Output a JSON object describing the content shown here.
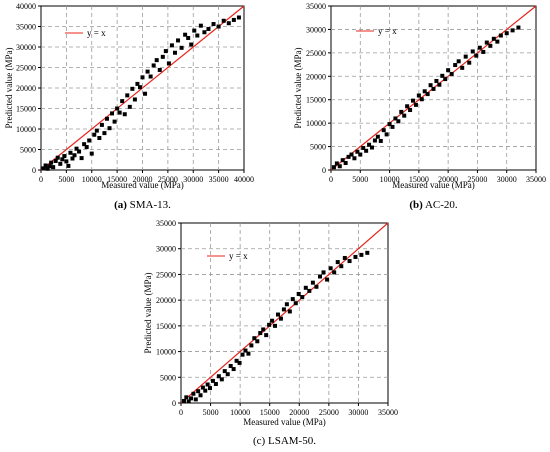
{
  "chart_data": [
    {
      "type": "scatter",
      "caption_letter": "(a)",
      "caption_text": " SMA-13.",
      "xlabel": "Measured value (MPa)",
      "ylabel": "Predicted value (MPa)",
      "xlim": [
        0,
        40000
      ],
      "ylim": [
        0,
        40000
      ],
      "xticks": [
        0,
        5000,
        10000,
        15000,
        20000,
        25000,
        30000,
        35000,
        40000
      ],
      "yticks": [
        0,
        5000,
        10000,
        15000,
        20000,
        25000,
        30000,
        35000,
        40000
      ],
      "xtick_labels": [
        "0",
        "5000",
        "10000",
        "15000",
        "20000",
        "25000",
        "30000",
        "35000",
        "40000"
      ],
      "ytick_labels": [
        "0",
        "5000",
        "10000",
        "15000",
        "20000",
        "25000",
        "30000",
        "35000",
        "40000"
      ],
      "grid": true,
      "legend_position": "top-left",
      "series": [
        {
          "name": "y = x",
          "kind": "line",
          "color": "#e8241c",
          "points": [
            [
              0,
              0
            ],
            [
              40000,
              40000
            ]
          ]
        },
        {
          "kind": "scatter",
          "color": "#000000",
          "points": [
            [
              500,
              400
            ],
            [
              900,
              1100
            ],
            [
              1300,
              300
            ],
            [
              1700,
              900
            ],
            [
              2000,
              1800
            ],
            [
              2400,
              700
            ],
            [
              2900,
              2200
            ],
            [
              3300,
              3000
            ],
            [
              3800,
              1500
            ],
            [
              4200,
              2600
            ],
            [
              4600,
              3400
            ],
            [
              5000,
              2100
            ],
            [
              5400,
              1000
            ],
            [
              5800,
              4200
            ],
            [
              6200,
              2800
            ],
            [
              6600,
              3600
            ],
            [
              7000,
              5200
            ],
            [
              7500,
              4500
            ],
            [
              8000,
              2900
            ],
            [
              8500,
              6300
            ],
            [
              9000,
              5600
            ],
            [
              9500,
              7200
            ],
            [
              10000,
              4000
            ],
            [
              10500,
              8600
            ],
            [
              11000,
              9600
            ],
            [
              11500,
              7800
            ],
            [
              12000,
              11000
            ],
            [
              12500,
              9000
            ],
            [
              13000,
              12500
            ],
            [
              13500,
              10200
            ],
            [
              14000,
              13800
            ],
            [
              14500,
              11800
            ],
            [
              15000,
              15000
            ],
            [
              15500,
              14000
            ],
            [
              16000,
              16800
            ],
            [
              16500,
              13600
            ],
            [
              17000,
              18200
            ],
            [
              17500,
              15400
            ],
            [
              18000,
              19800
            ],
            [
              18500,
              17200
            ],
            [
              19000,
              21000
            ],
            [
              19500,
              20200
            ],
            [
              20000,
              22600
            ],
            [
              20500,
              18600
            ],
            [
              21000,
              24000
            ],
            [
              21600,
              22800
            ],
            [
              22200,
              25500
            ],
            [
              22800,
              26800
            ],
            [
              23400,
              24400
            ],
            [
              24000,
              27600
            ],
            [
              24600,
              29000
            ],
            [
              25200,
              26000
            ],
            [
              25800,
              30400
            ],
            [
              26400,
              28600
            ],
            [
              27000,
              31600
            ],
            [
              27700,
              29800
            ],
            [
              28400,
              33000
            ],
            [
              29000,
              32200
            ],
            [
              29600,
              30600
            ],
            [
              30200,
              34000
            ],
            [
              30800,
              32800
            ],
            [
              31500,
              35200
            ],
            [
              32200,
              33600
            ],
            [
              33000,
              34400
            ],
            [
              34000,
              35600
            ],
            [
              35000,
              35000
            ],
            [
              36000,
              36400
            ],
            [
              37000,
              35800
            ],
            [
              38000,
              36600
            ],
            [
              39000,
              37200
            ]
          ]
        }
      ]
    },
    {
      "type": "scatter",
      "caption_letter": "(b)",
      "caption_text": " AC-20.",
      "xlabel": "Measured value (MPa)",
      "ylabel": "Predicted value (MPa)",
      "xlim": [
        0,
        35000
      ],
      "ylim": [
        0,
        35000
      ],
      "xticks": [
        0,
        5000,
        10000,
        15000,
        20000,
        25000,
        30000,
        35000
      ],
      "yticks": [
        0,
        5000,
        10000,
        15000,
        20000,
        25000,
        30000,
        35000
      ],
      "xtick_labels": [
        "0",
        "5000",
        "10000",
        "15000",
        "20000",
        "25000",
        "30000",
        "35000"
      ],
      "ytick_labels": [
        "0",
        "5000",
        "10000",
        "15000",
        "20000",
        "25000",
        "30000",
        "35000"
      ],
      "grid": true,
      "legend_position": "top-left",
      "series": [
        {
          "name": "y = x",
          "kind": "line",
          "color": "#e8241c",
          "points": [
            [
              0,
              0
            ],
            [
              35000,
              35000
            ]
          ]
        },
        {
          "kind": "scatter",
          "color": "#000000",
          "points": [
            [
              500,
              600
            ],
            [
              1000,
              1400
            ],
            [
              1500,
              800
            ],
            [
              2000,
              2100
            ],
            [
              2500,
              1500
            ],
            [
              3000,
              2800
            ],
            [
              3500,
              3300
            ],
            [
              4000,
              2500
            ],
            [
              4500,
              3900
            ],
            [
              5000,
              3300
            ],
            [
              5500,
              4700
            ],
            [
              6000,
              4100
            ],
            [
              6500,
              5400
            ],
            [
              7000,
              4800
            ],
            [
              7500,
              6300
            ],
            [
              8000,
              7100
            ],
            [
              8500,
              6200
            ],
            [
              9000,
              8500
            ],
            [
              9500,
              7600
            ],
            [
              10000,
              9800
            ],
            [
              10500,
              9200
            ],
            [
              11000,
              11000
            ],
            [
              11500,
              10400
            ],
            [
              12000,
              12400
            ],
            [
              12500,
              11600
            ],
            [
              13000,
              13600
            ],
            [
              13500,
              12800
            ],
            [
              14000,
              14800
            ],
            [
              14500,
              13900
            ],
            [
              15000,
              15900
            ],
            [
              15500,
              15100
            ],
            [
              16000,
              16800
            ],
            [
              16500,
              16200
            ],
            [
              17000,
              18100
            ],
            [
              17500,
              17300
            ],
            [
              18000,
              19000
            ],
            [
              18500,
              18200
            ],
            [
              19000,
              20100
            ],
            [
              19500,
              19400
            ],
            [
              20000,
              21300
            ],
            [
              20600,
              20500
            ],
            [
              21200,
              22400
            ],
            [
              21800,
              23200
            ],
            [
              22400,
              21800
            ],
            [
              23000,
              24200
            ],
            [
              23600,
              22900
            ],
            [
              24200,
              25300
            ],
            [
              24800,
              24400
            ],
            [
              25400,
              26100
            ],
            [
              26000,
              25200
            ],
            [
              26600,
              27200
            ],
            [
              27200,
              26500
            ],
            [
              27800,
              28000
            ],
            [
              28400,
              27400
            ],
            [
              29000,
              28700
            ],
            [
              30000,
              29200
            ],
            [
              31000,
              29800
            ],
            [
              32000,
              30400
            ]
          ]
        }
      ]
    },
    {
      "type": "scatter",
      "caption_letter": "(c)",
      "caption_text": " LSAM-50.",
      "xlabel": "Measured value (MPa)",
      "ylabel": "Predicted value (MPa)",
      "xlim": [
        0,
        35000
      ],
      "ylim": [
        0,
        35000
      ],
      "xticks": [
        0,
        5000,
        10000,
        15000,
        20000,
        25000,
        30000,
        35000
      ],
      "yticks": [
        0,
        5000,
        10000,
        15000,
        20000,
        25000,
        30000,
        35000
      ],
      "xtick_labels": [
        "0",
        "5000",
        "10000",
        "15000",
        "20000",
        "25000",
        "30000",
        "35000"
      ],
      "ytick_labels": [
        "0",
        "5000",
        "10000",
        "15000",
        "20000",
        "25000",
        "30000",
        "35000"
      ],
      "grid": true,
      "legend_position": "top-left",
      "series": [
        {
          "name": "y = x",
          "kind": "line",
          "color": "#e8241c",
          "points": [
            [
              0,
              0
            ],
            [
              35000,
              35000
            ]
          ]
        },
        {
          "kind": "scatter",
          "color": "#000000",
          "points": [
            [
              500,
              400
            ],
            [
              900,
              1100
            ],
            [
              1300,
              300
            ],
            [
              1700,
              900
            ],
            [
              2100,
              1800
            ],
            [
              2500,
              700
            ],
            [
              2900,
              2300
            ],
            [
              3300,
              1500
            ],
            [
              3700,
              3000
            ],
            [
              4100,
              2400
            ],
            [
              4500,
              3600
            ],
            [
              4900,
              2900
            ],
            [
              5400,
              4300
            ],
            [
              5900,
              3700
            ],
            [
              6400,
              5200
            ],
            [
              6900,
              4600
            ],
            [
              7400,
              6200
            ],
            [
              7900,
              5600
            ],
            [
              8400,
              7200
            ],
            [
              8900,
              6600
            ],
            [
              9400,
              8200
            ],
            [
              9900,
              7800
            ],
            [
              10400,
              9400
            ],
            [
              10900,
              10200
            ],
            [
              11400,
              9600
            ],
            [
              11900,
              11200
            ],
            [
              12400,
              12600
            ],
            [
              12900,
              12000
            ],
            [
              13400,
              13600
            ],
            [
              13900,
              14300
            ],
            [
              14400,
              13200
            ],
            [
              14900,
              15200
            ],
            [
              15400,
              16000
            ],
            [
              15900,
              15000
            ],
            [
              16400,
              17200
            ],
            [
              16900,
              16400
            ],
            [
              17400,
              18200
            ],
            [
              17900,
              19200
            ],
            [
              18400,
              17800
            ],
            [
              18900,
              20200
            ],
            [
              19400,
              19400
            ],
            [
              19900,
              21200
            ],
            [
              20500,
              20600
            ],
            [
              21100,
              22400
            ],
            [
              21700,
              21800
            ],
            [
              22300,
              23400
            ],
            [
              22900,
              22600
            ],
            [
              23500,
              24600
            ],
            [
              24100,
              25400
            ],
            [
              24700,
              24000
            ],
            [
              25300,
              26200
            ],
            [
              25900,
              25400
            ],
            [
              26500,
              27400
            ],
            [
              27100,
              26600
            ],
            [
              27700,
              28200
            ],
            [
              28500,
              27600
            ],
            [
              29500,
              28400
            ],
            [
              30500,
              28800
            ],
            [
              31500,
              29200
            ]
          ]
        }
      ]
    }
  ]
}
